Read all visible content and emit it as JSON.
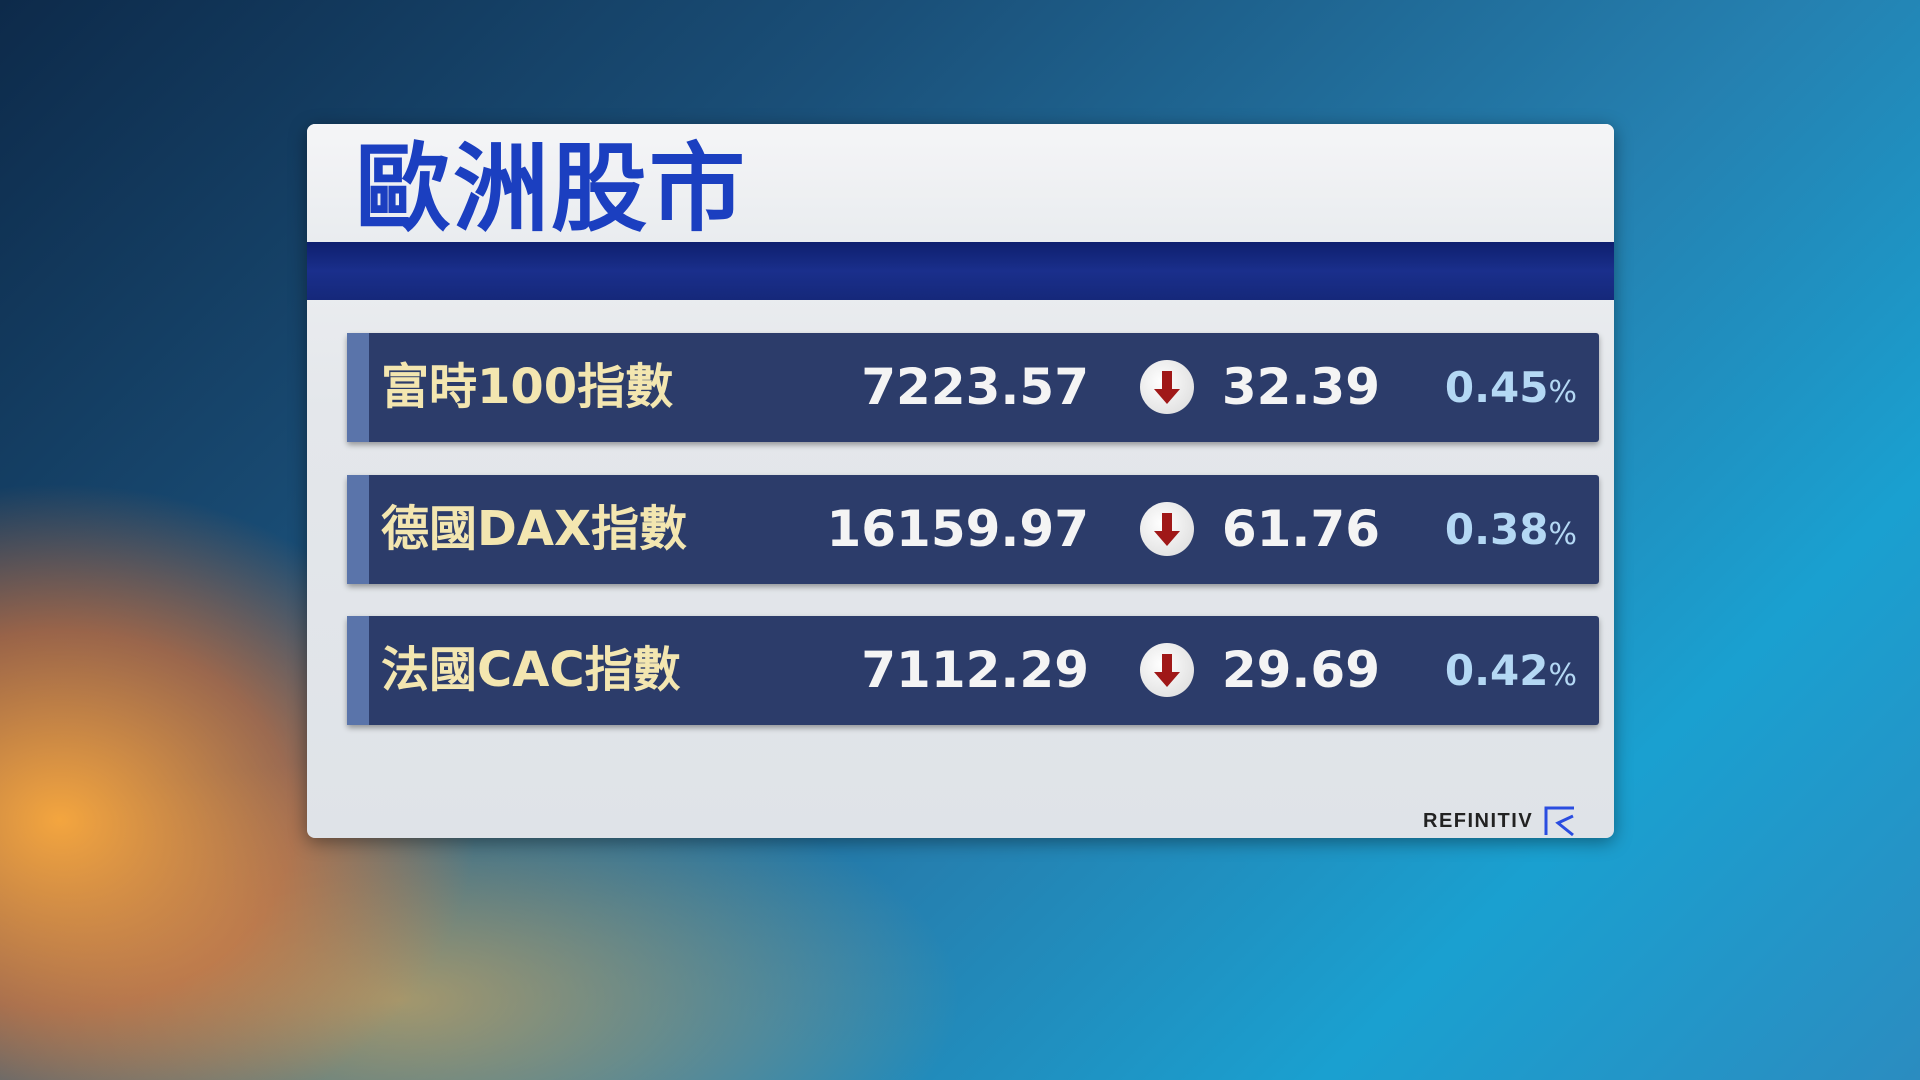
{
  "title": "歐洲股市",
  "rows": [
    {
      "name": "富時100指數",
      "value": "7223.57",
      "direction": "down",
      "change": "32.39",
      "percent": "0.45",
      "percent_sign": "%"
    },
    {
      "name": "德國DAX指數",
      "value": "16159.97",
      "direction": "down",
      "change": "61.76",
      "percent": "0.38",
      "percent_sign": "%"
    },
    {
      "name": "法國CAC指數",
      "value": "7112.29",
      "direction": "down",
      "change": "29.69",
      "percent": "0.42",
      "percent_sign": "%"
    }
  ],
  "brand": "REFINITIV",
  "colors": {
    "title": "#1b3fc0",
    "row_bg": "#2c3c6a",
    "name": "#f3e6b0",
    "percent": "#b4d8f4",
    "down_arrow": "#a01818"
  }
}
